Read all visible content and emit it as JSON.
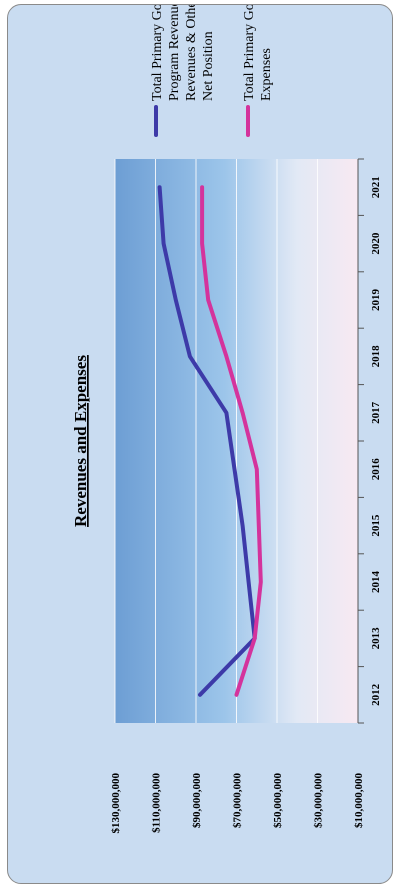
{
  "chart_data": {
    "type": "line",
    "title": "Revenues and Expenses",
    "orientation": "rotated-90-clockwise",
    "categories": [
      "2012",
      "2013",
      "2014",
      "2015",
      "2016",
      "2017",
      "2018",
      "2019",
      "2020",
      "2021"
    ],
    "y_ticks": [
      "$10,000,000",
      "$30,000,000",
      "$50,000,000",
      "$70,000,000",
      "$90,000,000",
      "$110,000,000",
      "$130,000,000"
    ],
    "ylim": [
      10000000,
      130000000
    ],
    "grid": true,
    "legend_placement": "right",
    "series": [
      {
        "name": "Total Primary Government-Program Revenues, General Revenues & Other Changes in Net Position",
        "legend_lines": [
          "Total Primary Government-",
          "Program Revenues, General",
          "Revenues & Other Changes in",
          "Net Position"
        ],
        "color": "#3d3aa8",
        "values": [
          88000000,
          61000000,
          64000000,
          67000000,
          71000000,
          75000000,
          93000000,
          100000000,
          106000000,
          108000000
        ]
      },
      {
        "name": "Total Primary Government Expenses",
        "legend_lines": [
          "Total Primary Government",
          "Expenses"
        ],
        "color": "#d4339c",
        "values": [
          70000000,
          61000000,
          58000000,
          59000000,
          60000000,
          67000000,
          75000000,
          84000000,
          87000000,
          87000000
        ]
      }
    ]
  }
}
